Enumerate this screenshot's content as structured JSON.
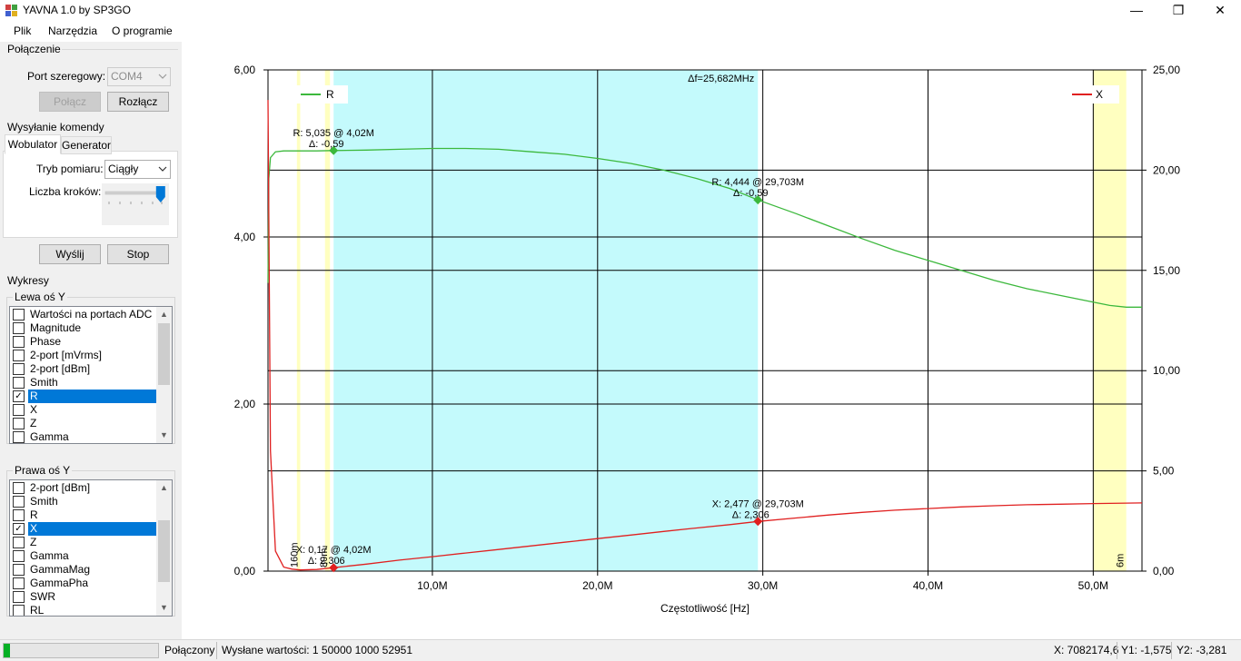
{
  "window": {
    "title": "YAVNA 1.0 by SP3GO",
    "minimize_glyph": "—",
    "maximize_glyph": "❐",
    "close_glyph": "✕"
  },
  "menu": [
    "Plik",
    "Narzędzia",
    "O programie"
  ],
  "connection": {
    "title": "Połączenie",
    "port_label": "Port szeregowy:",
    "port_value": "COM4",
    "connect_label": "Połącz",
    "disconnect_label": "Rozłącz"
  },
  "command": {
    "title": "Wysyłanie komendy",
    "tabs": [
      "Wobulator",
      "Generator"
    ],
    "mode_label": "Tryb pomiaru:",
    "mode_value": "Ciągły",
    "steps_label": "Liczba kroków:",
    "steps_level": 0.95,
    "send_label": "Wyślij",
    "stop_label": "Stop"
  },
  "plots": {
    "title": "Wykresy",
    "left_axis": {
      "title": "Lewa oś Y",
      "items": [
        {
          "label": "Wartości na portach ADC",
          "checked": false,
          "selected": false
        },
        {
          "label": "Magnitude",
          "checked": false,
          "selected": false
        },
        {
          "label": "Phase",
          "checked": false,
          "selected": false
        },
        {
          "label": "2-port [mVrms]",
          "checked": false,
          "selected": false
        },
        {
          "label": "2-port [dBm]",
          "checked": false,
          "selected": false
        },
        {
          "label": "Smith",
          "checked": false,
          "selected": false
        },
        {
          "label": "R",
          "checked": true,
          "selected": true
        },
        {
          "label": "X",
          "checked": false,
          "selected": false
        },
        {
          "label": "Z",
          "checked": false,
          "selected": false
        },
        {
          "label": "Gamma",
          "checked": false,
          "selected": false
        }
      ]
    },
    "right_axis": {
      "title": "Prawa oś Y",
      "items": [
        {
          "label": "2-port [dBm]",
          "checked": false,
          "selected": false
        },
        {
          "label": "Smith",
          "checked": false,
          "selected": false
        },
        {
          "label": "R",
          "checked": false,
          "selected": false
        },
        {
          "label": "X",
          "checked": true,
          "selected": true
        },
        {
          "label": "Z",
          "checked": false,
          "selected": false
        },
        {
          "label": "Gamma",
          "checked": false,
          "selected": false
        },
        {
          "label": "GammaMag",
          "checked": false,
          "selected": false
        },
        {
          "label": "GammaPha",
          "checked": false,
          "selected": false
        },
        {
          "label": "SWR",
          "checked": false,
          "selected": false
        },
        {
          "label": "RL",
          "checked": false,
          "selected": false
        }
      ]
    }
  },
  "status": {
    "progress": 0.04,
    "connection": "Połączony",
    "sent": "Wysłane wartości: 1 50000 1000 52951",
    "x": "X: 7082174,6",
    "y1": "Y1: -1,575",
    "y2": "Y2: -3,281"
  },
  "chart_data": {
    "type": "line",
    "xlabel": "Częstotliwość [Hz]",
    "x_ticks": [
      "10,0M",
      "20,0M",
      "30,0M",
      "40,0M",
      "50,0M"
    ],
    "xlim": [
      0.05,
      52.95
    ],
    "y_left_ticks": [
      "0,00",
      "2,00",
      "4,00",
      "6,00"
    ],
    "ylim_left": [
      0,
      6
    ],
    "y_right_ticks": [
      "0,00",
      "5,00",
      "10,00",
      "15,00",
      "20,00",
      "25,00"
    ],
    "ylim_right": [
      0,
      25
    ],
    "grid": true,
    "legend": [
      "top-left",
      "top-right"
    ],
    "series": [
      {
        "name": "R",
        "axis": "left",
        "color": "#3cb83c",
        "x": [
          0.05,
          0.1,
          0.2,
          0.5,
          1,
          2,
          3,
          4.02,
          6,
          8,
          10,
          12,
          14,
          16,
          18,
          20,
          22,
          24,
          26,
          28,
          29.7,
          32,
          34,
          36,
          38,
          40,
          42,
          44,
          46,
          48,
          50,
          51,
          52,
          52.95
        ],
        "values": [
          3.45,
          4.7,
          4.95,
          5.02,
          5.03,
          5.03,
          5.03,
          5.035,
          5.04,
          5.05,
          5.06,
          5.06,
          5.05,
          5.02,
          4.99,
          4.94,
          4.88,
          4.8,
          4.7,
          4.58,
          4.444,
          4.28,
          4.13,
          3.98,
          3.84,
          3.72,
          3.6,
          3.48,
          3.38,
          3.3,
          3.22,
          3.18,
          3.16,
          3.16
        ]
      },
      {
        "name": "X",
        "axis": "right",
        "color": "#e02020",
        "x": [
          0.05,
          0.2,
          0.5,
          1,
          1.5,
          2,
          3,
          4.02,
          6,
          8,
          10,
          12,
          14,
          16,
          18,
          20,
          22,
          24,
          26,
          28,
          29.7,
          32,
          34,
          36,
          38,
          40,
          42,
          44,
          46,
          48,
          50,
          51,
          52,
          52.95
        ],
        "values": [
          23.5,
          6.0,
          1.0,
          0.2,
          0.1,
          0.06,
          0.08,
          0.17,
          0.35,
          0.55,
          0.72,
          0.9,
          1.08,
          1.26,
          1.44,
          1.62,
          1.8,
          1.98,
          2.15,
          2.32,
          2.477,
          2.65,
          2.8,
          2.93,
          3.04,
          3.12,
          3.2,
          3.26,
          3.31,
          3.34,
          3.37,
          3.38,
          3.39,
          3.4
        ]
      }
    ],
    "markers": [
      {
        "series": "R",
        "x": 4.02,
        "y": 5.035,
        "label": "R: 5,035 @ 4,02M",
        "delta": "Δ: -0,59"
      },
      {
        "series": "R",
        "x": 29.703,
        "y": 4.444,
        "label": "R: 4,444 @ 29,703M",
        "delta": "Δ: -0,59"
      },
      {
        "series": "X",
        "x": 4.02,
        "y": 0.17,
        "label": "X: 0,17 @ 4,02M",
        "delta": "Δ: 2,306"
      },
      {
        "series": "X",
        "x": 29.703,
        "y": 2.477,
        "label": "X: 2,477 @ 29,703M",
        "delta": "Δ: 2,306"
      }
    ],
    "span": {
      "from": 4.02,
      "to": 29.703,
      "label": "Δf=25,682MHz",
      "color": "#c4fafc"
    },
    "bands": [
      {
        "from": 1.8,
        "to": 2.0,
        "label": "160m",
        "color": "#ffffc0"
      },
      {
        "from": 3.5,
        "to": 3.8,
        "label": "80m",
        "color": "#ffffc0"
      },
      {
        "from": 50.0,
        "to": 52.0,
        "label": "6m",
        "color": "#ffffc0"
      }
    ]
  }
}
